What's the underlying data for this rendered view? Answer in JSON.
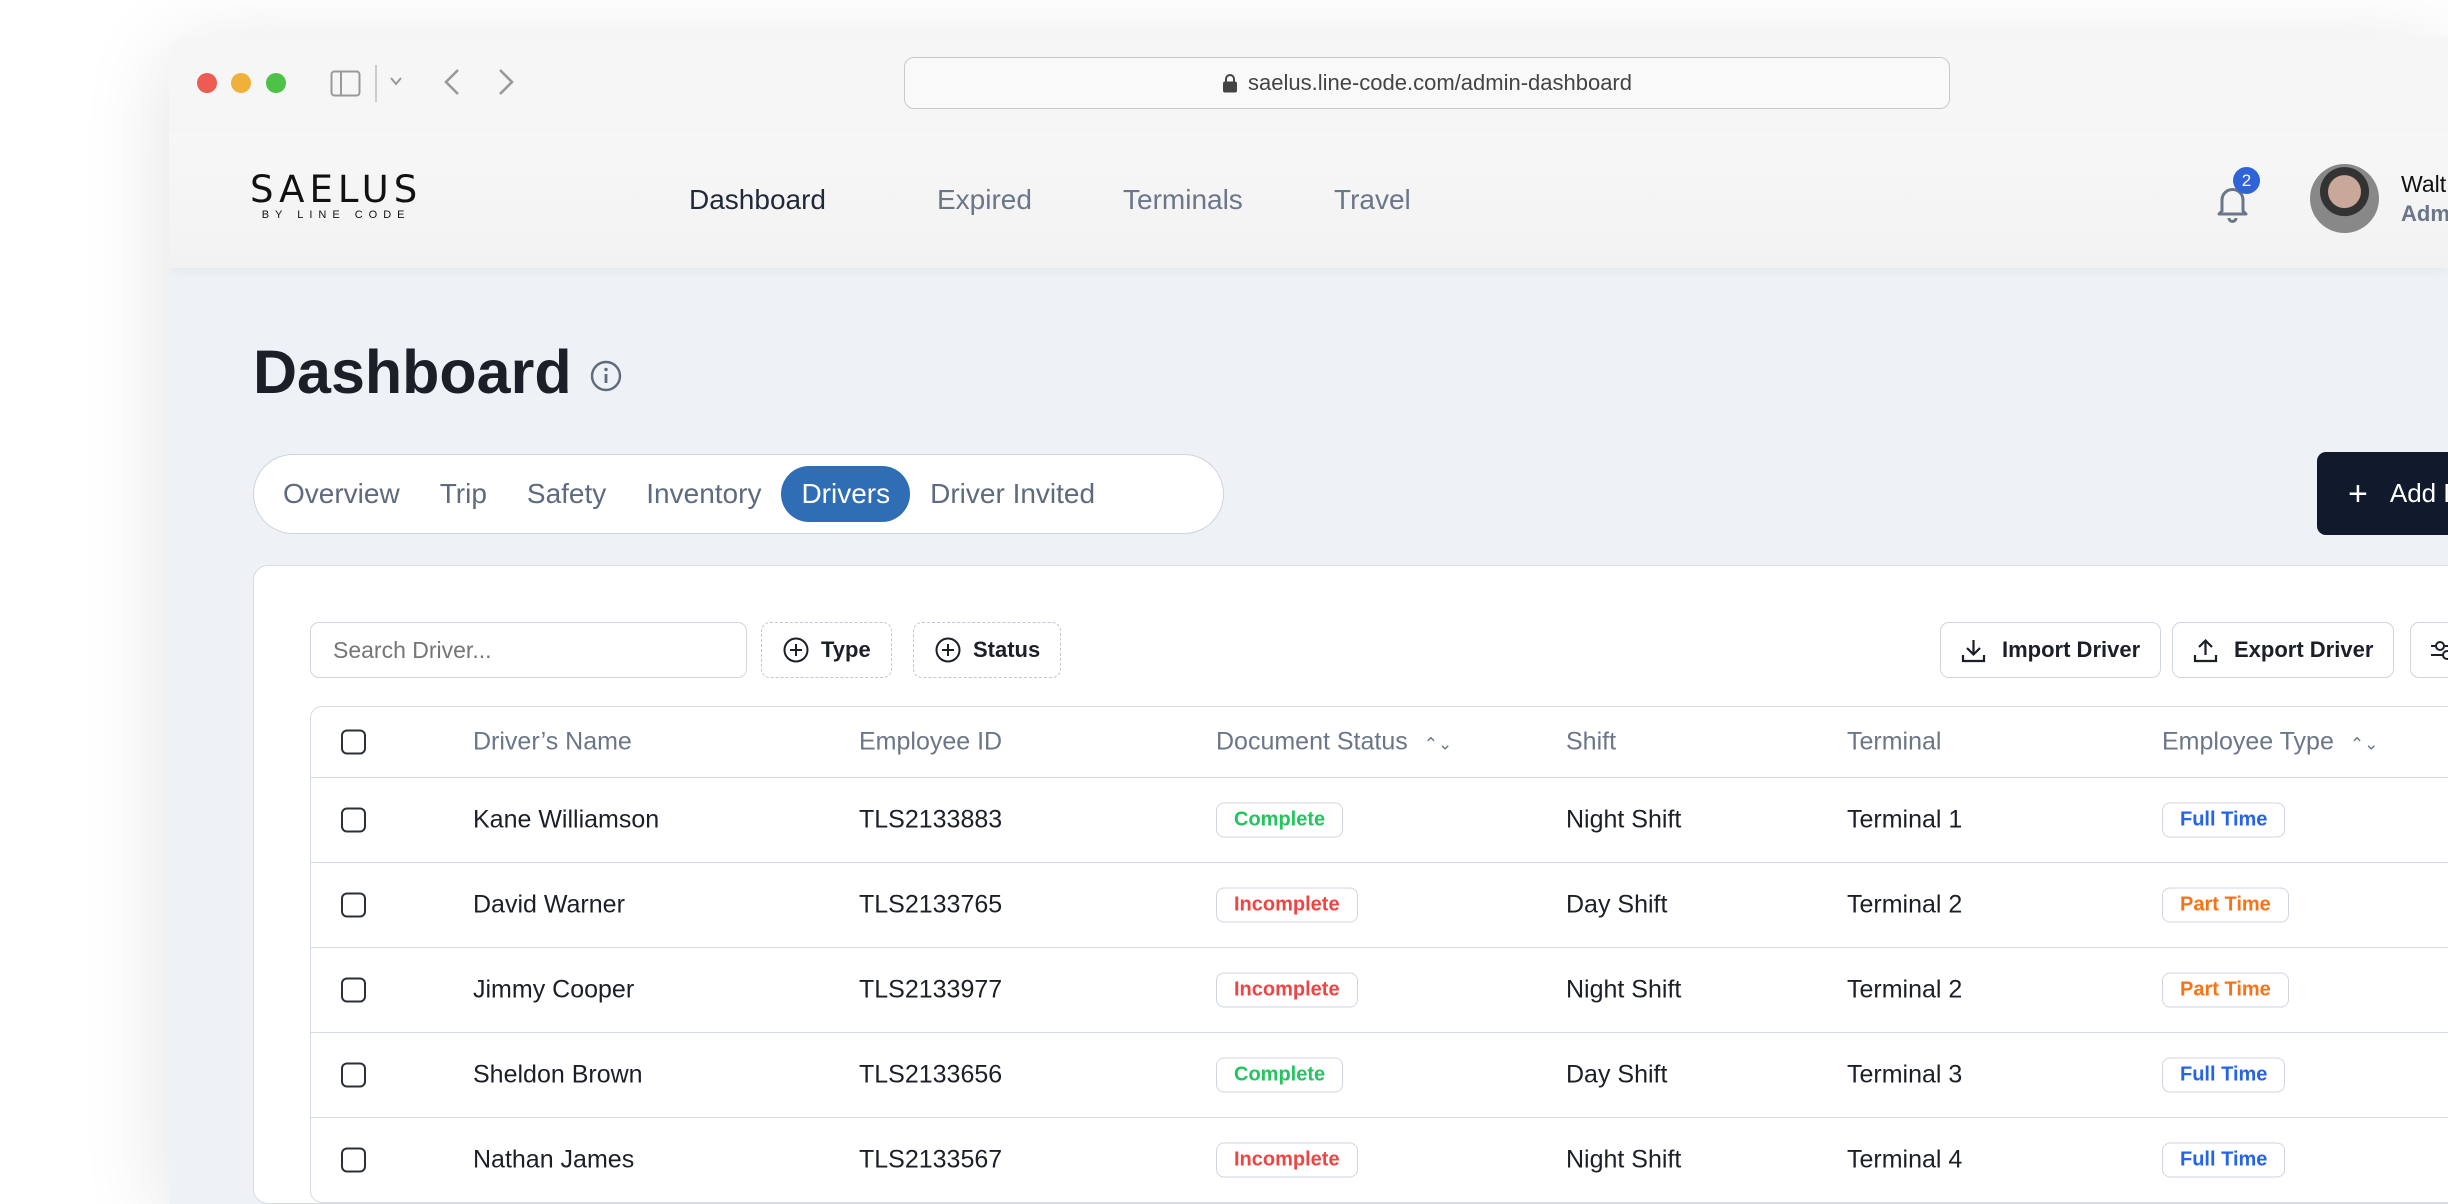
{
  "browser": {
    "url": "saelus.line-code.com/admin-dashboard"
  },
  "header": {
    "logo_text": "SAELUS",
    "logo_sub": "BY LINE CODE",
    "nav": [
      {
        "label": "Dashboard"
      },
      {
        "label": "Expired"
      },
      {
        "label": "Terminals"
      },
      {
        "label": "Travel"
      }
    ],
    "notification_count": "2",
    "user_name": "Walt",
    "user_role": "Adm"
  },
  "page": {
    "title": "Dashboard",
    "add_button": "Add D"
  },
  "tabs": [
    {
      "label": "Overview"
    },
    {
      "label": "Trip"
    },
    {
      "label": "Safety"
    },
    {
      "label": "Inventory"
    },
    {
      "label": "Drivers"
    },
    {
      "label": "Driver Invited"
    }
  ],
  "toolbar": {
    "search_placeholder": "Search Driver...",
    "filter_type": "Type",
    "filter_status": "Status",
    "import": "Import Driver",
    "export": "Export Driver"
  },
  "table": {
    "headers": [
      "Driver’s Name",
      "Employee ID",
      "Document Status",
      "Shift",
      "Terminal",
      "Employee Type"
    ],
    "rows": [
      {
        "name": "Kane Williamson",
        "id": "TLS2133883",
        "status": "Complete",
        "shift": "Night Shift",
        "terminal": "Terminal 1",
        "type": "Full Time"
      },
      {
        "name": "David Warner",
        "id": "TLS2133765",
        "status": "Incomplete",
        "shift": "Day Shift",
        "terminal": "Terminal 2",
        "type": "Part Time"
      },
      {
        "name": "Jimmy Cooper",
        "id": "TLS2133977",
        "status": "Incomplete",
        "shift": "Night Shift",
        "terminal": "Terminal 2",
        "type": "Part Time"
      },
      {
        "name": "Sheldon Brown",
        "id": "TLS2133656",
        "status": "Complete",
        "shift": "Day Shift",
        "terminal": "Terminal 3",
        "type": "Full Time"
      },
      {
        "name": "Nathan James",
        "id": "TLS2133567",
        "status": "Incomplete",
        "shift": "Night Shift",
        "terminal": "Terminal 4",
        "type": "Full Time"
      }
    ]
  },
  "colors": {
    "accent": "#2f6db5",
    "complete": "#22c55e",
    "incomplete": "#ef4444",
    "full_time": "#2563eb",
    "part_time": "#f97316",
    "dark": "#111a2c"
  }
}
